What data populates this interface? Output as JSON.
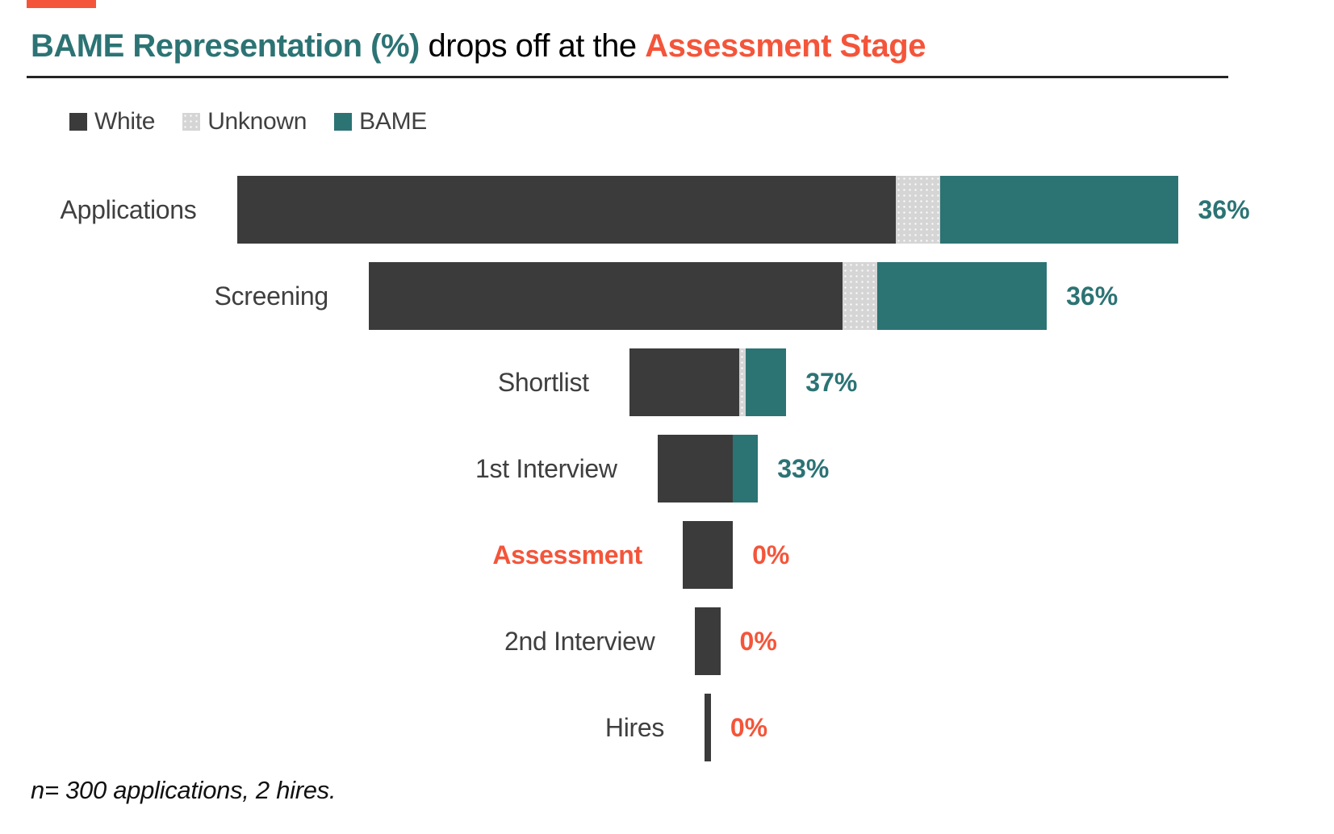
{
  "title": {
    "part1": "BAME Representation (%)",
    "part2": " drops off at the ",
    "part3": "Assessment Stage"
  },
  "legend": {
    "items": [
      {
        "label": "White",
        "color": "#3B3B3B"
      },
      {
        "label": "Unknown",
        "color": "#D5D5D5"
      },
      {
        "label": "BAME",
        "color": "#2C7374"
      }
    ]
  },
  "footnote": "n= 300 applications, 2 hires.",
  "colors": {
    "teal": "#2C7374",
    "orange": "#F4553A",
    "dark": "#3B3B3B",
    "light_gray": "#D5D5D5",
    "label_text": "#3F3F3F",
    "divider": "#242424",
    "background": "#FFFFFF"
  },
  "chart_data": {
    "type": "bar",
    "subtype": "horizontal centered stacked funnel",
    "title": "BAME Representation (%) drops off at the Assessment Stage",
    "categories": [
      "Applications",
      "Screening",
      "Shortlist",
      "1st Interview",
      "Assessment",
      "2nd Interview",
      "Hires"
    ],
    "series": [
      {
        "name": "White",
        "color": "#3B3B3B",
        "values": [
          210,
          151,
          35,
          24,
          16,
          8,
          2
        ]
      },
      {
        "name": "Unknown",
        "color": "#D5D5D5",
        "values": [
          14,
          11,
          2,
          0,
          0,
          0,
          0
        ]
      },
      {
        "name": "BAME",
        "color": "#2C7374",
        "values": [
          76,
          54,
          13,
          8,
          0,
          0,
          0
        ]
      }
    ],
    "stage_totals": [
      300,
      216,
      50,
      32,
      16,
      8,
      2
    ],
    "value_labels": [
      "36%",
      "36%",
      "37%",
      "33%",
      "0%",
      "0%",
      "0%"
    ],
    "value_label_colors": [
      "teal",
      "teal",
      "teal",
      "teal",
      "orange",
      "orange",
      "orange"
    ],
    "highlight_stage": "Assessment",
    "layout": {
      "bars_centered": true,
      "legend_position": "top-left",
      "grid": false,
      "bar_width_proportional_to": "stage applicant count (n=300 = full width)"
    }
  }
}
